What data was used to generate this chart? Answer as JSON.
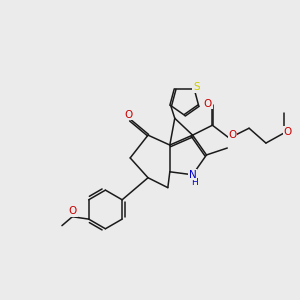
{
  "background_color": "#ebebeb",
  "figsize": [
    3.0,
    3.0
  ],
  "dpi": 100,
  "bond_color": "#1a1a1a",
  "S_color": "#cccc00",
  "O_color": "#cc0000",
  "N_color": "#0000cc",
  "bond_lw": 1.1,
  "xlim": [
    0,
    10
  ],
  "ylim": [
    0,
    10
  ]
}
